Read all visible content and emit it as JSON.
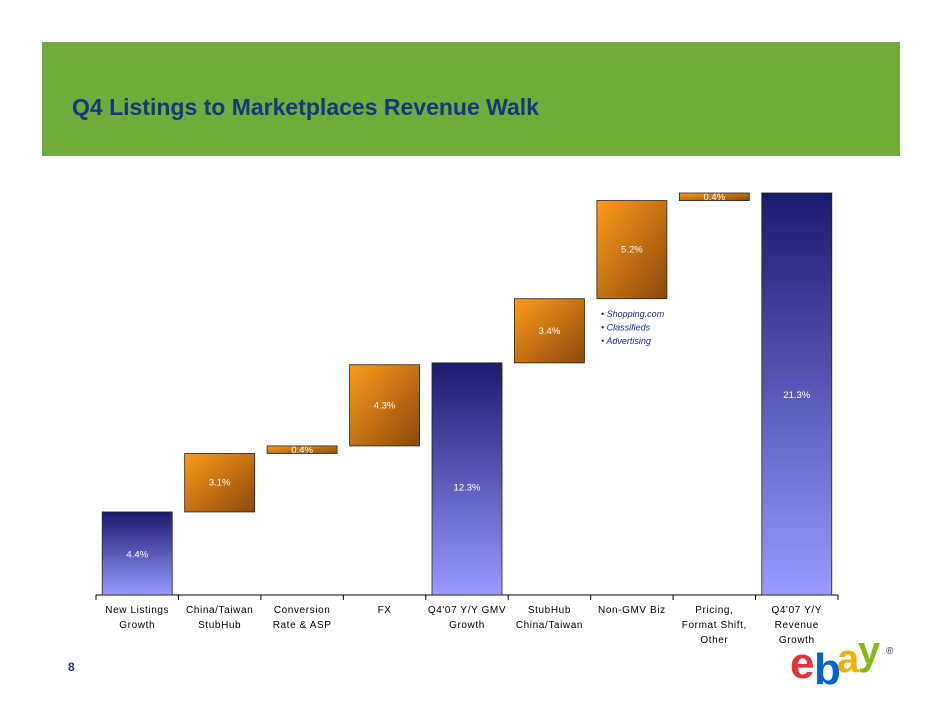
{
  "title": "Q4 Listings to Marketplaces Revenue Walk",
  "page_number": "8",
  "chart_data": {
    "type": "waterfall",
    "categories": [
      [
        "New Listings",
        "Growth"
      ],
      [
        "China/Taiwan",
        "StubHub"
      ],
      [
        "Conversion",
        "Rate & ASP"
      ],
      [
        "FX"
      ],
      [
        "Q4'07 Y/Y GMV",
        "Growth"
      ],
      [
        "StubHub",
        "China/Taiwan"
      ],
      [
        "Non-GMV Biz"
      ],
      [
        "Pricing,",
        "Format Shift,",
        "Other"
      ],
      [
        "Q4'07 Y/Y",
        "Revenue",
        "Growth"
      ]
    ],
    "bars": [
      {
        "kind": "total",
        "start": 0,
        "end": 4.4,
        "label": "4.4%"
      },
      {
        "kind": "delta",
        "start": 4.4,
        "end": 7.5,
        "label": "3.1%"
      },
      {
        "kind": "delta",
        "start": 7.5,
        "end": 7.9,
        "label": "0.4%"
      },
      {
        "kind": "delta",
        "start": 7.9,
        "end": 12.2,
        "label": "4.3%"
      },
      {
        "kind": "total",
        "start": 0,
        "end": 12.3,
        "label": "12.3%"
      },
      {
        "kind": "delta",
        "start": 12.3,
        "end": 15.7,
        "label": "3.4%"
      },
      {
        "kind": "delta",
        "start": 15.7,
        "end": 20.9,
        "label": "5.2%"
      },
      {
        "kind": "delta",
        "start": 20.9,
        "end": 21.3,
        "label": "0.4%"
      },
      {
        "kind": "total",
        "start": 0,
        "end": 21.3,
        "label": "21.3%"
      }
    ],
    "annotation": [
      "• Shopping.com",
      "• Classifieds",
      "• Advertising"
    ],
    "ylim": [
      0,
      21.3
    ],
    "colors": {
      "total_top": "#1a1a6e",
      "total_bottom": "#9a9aff",
      "delta_top": "#8a4a0a",
      "delta_bottom": "#ff9a1a"
    }
  },
  "logo": {
    "text": [
      "e",
      "b",
      "a",
      "y"
    ],
    "registered": "®"
  }
}
